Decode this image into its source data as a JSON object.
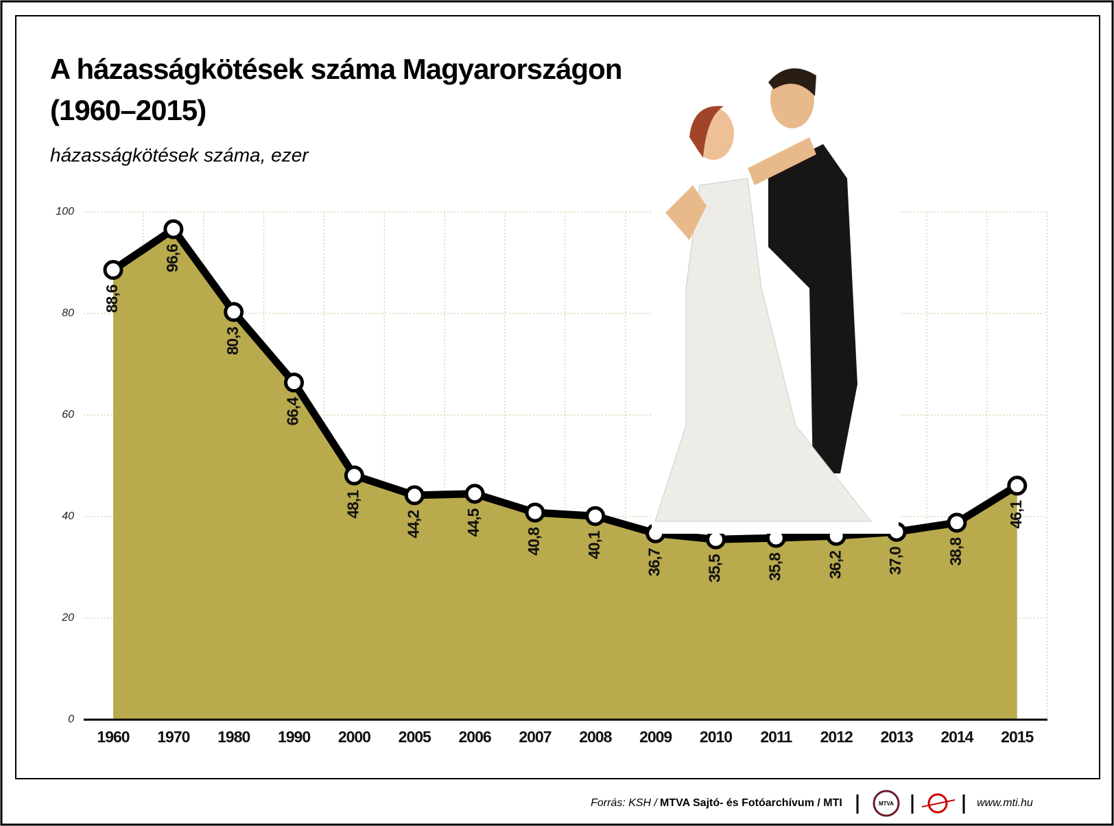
{
  "chart_data": {
    "type": "area-line",
    "title_lines": [
      "A házasságkötések száma Magyarországon",
      "(1960–2015)"
    ],
    "subtitle": "házasságkötések száma, ezer",
    "categories": [
      "1960",
      "1970",
      "1980",
      "1990",
      "2000",
      "2005",
      "2006",
      "2007",
      "2008",
      "2009",
      "2010",
      "2011",
      "2012",
      "2013",
      "2014",
      "2015"
    ],
    "values": [
      88.6,
      96.6,
      80.3,
      66.4,
      48.1,
      44.2,
      44.5,
      40.8,
      40.1,
      36.7,
      35.5,
      35.8,
      36.2,
      37.0,
      38.8,
      46.1
    ],
    "value_labels": [
      "88,6",
      "96,6",
      "80,3",
      "66,4",
      "48,1",
      "44,2",
      "44,5",
      "40,8",
      "40,1",
      "36,7",
      "35,5",
      "35,8",
      "36,2",
      "37,0",
      "38,8",
      "46,1"
    ],
    "color": "#b9aa4d",
    "line_color": "#000000",
    "ylim": [
      0,
      100
    ],
    "yticks": [
      0,
      20,
      40,
      60,
      80,
      100
    ],
    "grid": true
  },
  "footer": {
    "source": "Forrás: KSH /",
    "agency": "MTVA Sajtó- és Fotóarchívum / MTI",
    "logo": "MTVA",
    "url": "www.mti.hu"
  }
}
